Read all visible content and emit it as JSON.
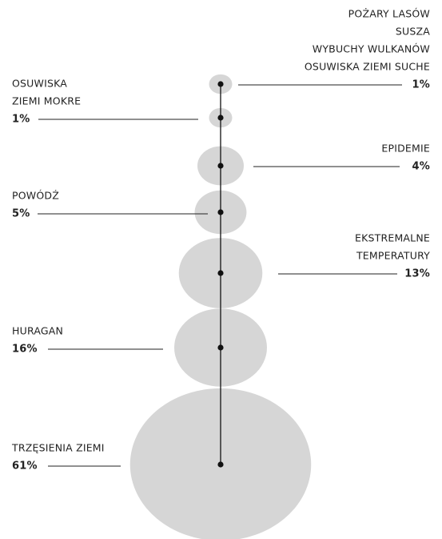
{
  "chart_data": {
    "type": "bubble",
    "categories": [
      [
        "POŻARY LASÓW",
        "SUSZA",
        "WYBUCHY WULKANÓW",
        "OSUWISKA ZIEMI SUCHE"
      ],
      [
        "OSUWISKA",
        "ZIEMI MOKRE"
      ],
      [
        "EPIDEMIE"
      ],
      [
        "POWÓDŹ"
      ],
      [
        "EKSTREMALNE",
        "TEMPERATURY"
      ],
      [
        "HURAGAN"
      ],
      [
        "TRZĘSIENIA ZIEMI"
      ]
    ],
    "values": [
      1,
      1,
      4,
      5,
      13,
      16,
      61
    ],
    "value_labels": [
      "1%",
      "1%",
      "4%",
      "5%",
      "13%",
      "16%",
      "61%"
    ],
    "color": "#d6d6d6"
  }
}
